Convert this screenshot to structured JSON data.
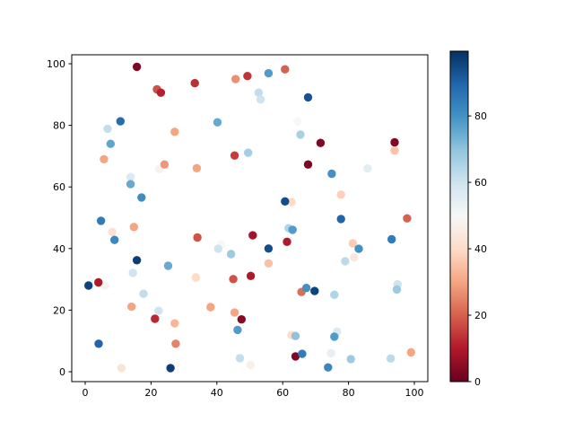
{
  "figure": {
    "background": "#ffffff",
    "plot_background": "#ffffff",
    "spine_color": "#000000",
    "tick_color": "#000000"
  },
  "chart_data": {
    "type": "scatter",
    "title": "",
    "xlabel": "",
    "ylabel": "",
    "xlim": [
      -4.1,
      104.2
    ],
    "ylim": [
      -3.2,
      103.0
    ],
    "x_tick_labels": [
      "0",
      "20",
      "40",
      "60",
      "80",
      "100"
    ],
    "y_tick_labels": [
      "0",
      "20",
      "40",
      "60",
      "80",
      "100"
    ],
    "x_ticks": [
      0,
      20,
      40,
      60,
      80,
      100
    ],
    "y_ticks": [
      0,
      20,
      40,
      60,
      80,
      100
    ],
    "grid": false,
    "legend": "none",
    "marker": "circle",
    "colormap": "RdBu",
    "colormap_colors": [
      "#67001f",
      "#b2182b",
      "#d6604d",
      "#f4a582",
      "#fddbc7",
      "#f7f7f7",
      "#d1e5f0",
      "#92c5de",
      "#4393c3",
      "#2166ac",
      "#053061"
    ],
    "colorbar": {
      "position": "right",
      "vmin": 0,
      "vmax": 99.5,
      "tick_values": [
        0,
        20,
        40,
        60,
        80
      ],
      "tick_labels": [
        "0",
        "20",
        "40",
        "60",
        "80"
      ]
    },
    "points_format": [
      "x",
      "y",
      "color_value"
    ],
    "points": [
      [
        15.7,
        99.0,
        3
      ],
      [
        21.8,
        91.7,
        18
      ],
      [
        23.0,
        90.6,
        11
      ],
      [
        33.3,
        93.7,
        13
      ],
      [
        45.7,
        95.0,
        27
      ],
      [
        49.3,
        96.0,
        14
      ],
      [
        55.7,
        96.9,
        78
      ],
      [
        60.7,
        98.2,
        20
      ],
      [
        52.7,
        90.6,
        62
      ],
      [
        53.3,
        88.4,
        60
      ],
      [
        67.7,
        89.1,
        93
      ],
      [
        10.7,
        81.3,
        88
      ],
      [
        6.8,
        78.9,
        62
      ],
      [
        40.2,
        81.0,
        75
      ],
      [
        64.5,
        81.3,
        50
      ],
      [
        65.4,
        77.0,
        66
      ],
      [
        27.2,
        77.9,
        30
      ],
      [
        7.7,
        74.0,
        76
      ],
      [
        71.5,
        74.3,
        3
      ],
      [
        94.0,
        74.5,
        3
      ],
      [
        94.0,
        71.8,
        35
      ],
      [
        45.4,
        70.2,
        15
      ],
      [
        49.5,
        71.1,
        67
      ],
      [
        5.7,
        69.0,
        30
      ],
      [
        22.5,
        65.8,
        48
      ],
      [
        24.1,
        67.3,
        28
      ],
      [
        33.9,
        66.1,
        30
      ],
      [
        67.7,
        67.3,
        3
      ],
      [
        85.8,
        66.0,
        55
      ],
      [
        13.8,
        63.2,
        57
      ],
      [
        13.8,
        60.9,
        75
      ],
      [
        74.9,
        64.3,
        80
      ],
      [
        17.1,
        56.6,
        81
      ],
      [
        62.7,
        55.1,
        40
      ],
      [
        60.7,
        55.3,
        94
      ],
      [
        77.7,
        57.5,
        38
      ],
      [
        4.8,
        49.0,
        85
      ],
      [
        77.7,
        49.6,
        90
      ],
      [
        97.8,
        49.8,
        20
      ],
      [
        14.8,
        47.0,
        30
      ],
      [
        8.2,
        45.4,
        42
      ],
      [
        8.9,
        42.8,
        82
      ],
      [
        34.1,
        43.6,
        18
      ],
      [
        50.9,
        44.3,
        8
      ],
      [
        61.8,
        46.6,
        65
      ],
      [
        63.0,
        46.1,
        78
      ],
      [
        61.3,
        42.2,
        10
      ],
      [
        55.7,
        40.0,
        94
      ],
      [
        41.3,
        41.4,
        50
      ],
      [
        40.4,
        39.9,
        60
      ],
      [
        44.3,
        38.2,
        68
      ],
      [
        81.3,
        41.7,
        37
      ],
      [
        83.1,
        39.9,
        80
      ],
      [
        81.7,
        37.1,
        44
      ],
      [
        93.1,
        43.0,
        85
      ],
      [
        79.0,
        35.9,
        63
      ],
      [
        15.7,
        36.2,
        97
      ],
      [
        25.2,
        34.4,
        75
      ],
      [
        14.5,
        32.1,
        60
      ],
      [
        55.7,
        35.2,
        35
      ],
      [
        33.6,
        30.6,
        40
      ],
      [
        45.0,
        30.1,
        18
      ],
      [
        50.3,
        31.1,
        10
      ],
      [
        1.0,
        28.0,
        96
      ],
      [
        6.0,
        28.0,
        48
      ],
      [
        4.0,
        29.0,
        10
      ],
      [
        17.7,
        25.3,
        62
      ],
      [
        65.7,
        25.9,
        22
      ],
      [
        67.2,
        27.2,
        80
      ],
      [
        69.7,
        26.2,
        96
      ],
      [
        75.7,
        25.0,
        65
      ],
      [
        94.9,
        28.4,
        60
      ],
      [
        94.7,
        26.7,
        68
      ],
      [
        14.1,
        21.1,
        30
      ],
      [
        38.1,
        21.0,
        30
      ],
      [
        22.3,
        19.8,
        60
      ],
      [
        21.2,
        17.2,
        12
      ],
      [
        45.4,
        19.2,
        30
      ],
      [
        47.5,
        17.0,
        4
      ],
      [
        46.3,
        13.6,
        78
      ],
      [
        27.2,
        15.7,
        33
      ],
      [
        62.7,
        11.9,
        40
      ],
      [
        63.9,
        11.6,
        70
      ],
      [
        76.5,
        13.0,
        57
      ],
      [
        75.7,
        11.4,
        78
      ],
      [
        4.1,
        9.1,
        90
      ],
      [
        27.5,
        9.1,
        25
      ],
      [
        11.0,
        1.2,
        43
      ],
      [
        25.9,
        1.2,
        97
      ],
      [
        63.9,
        5.0,
        3
      ],
      [
        65.9,
        5.8,
        85
      ],
      [
        74.7,
        6.0,
        54
      ],
      [
        73.8,
        1.4,
        82
      ],
      [
        80.7,
        4.1,
        68
      ],
      [
        92.8,
        4.3,
        63
      ],
      [
        99.0,
        6.3,
        30
      ],
      [
        47.0,
        4.4,
        62
      ],
      [
        50.2,
        2.2,
        47
      ]
    ]
  }
}
